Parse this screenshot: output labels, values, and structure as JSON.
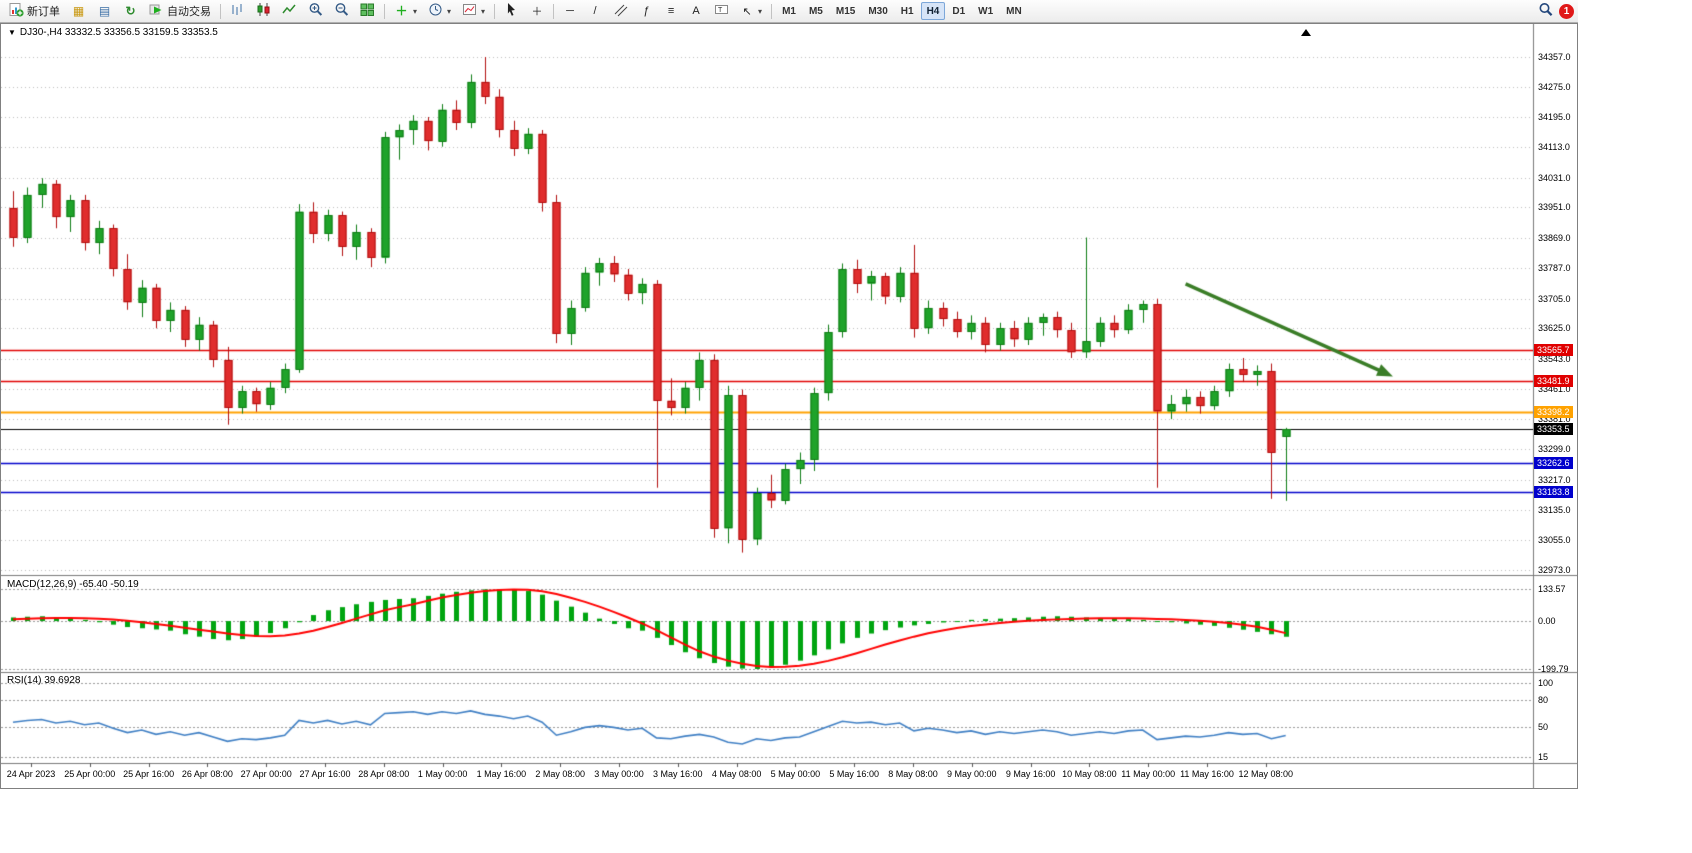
{
  "window": {
    "symbol_header": "DJ30-,H4 33332.5 33356.5 33159.5 33353.5"
  },
  "toolbar": {
    "new_order_label": "新订单",
    "auto_trading_label": "自动交易",
    "timeframes": [
      "M1",
      "M5",
      "M15",
      "M30",
      "H1",
      "H4",
      "D1",
      "W1",
      "MN"
    ],
    "active_timeframe": "H4",
    "notification_count": "1"
  },
  "chart_data": {
    "type": "candlestick",
    "symbol": "DJ30-",
    "timeframe": "H4",
    "ohlc": {
      "open": "33332.5",
      "high": "33356.5",
      "low": "33159.5",
      "close": "33353.5"
    },
    "y_ticks": [
      34357.0,
      34275.0,
      34195.0,
      34113.0,
      34031.0,
      33951.0,
      33869.0,
      33787.0,
      33705.0,
      33625.0,
      33543.0,
      33461.0,
      33381.0,
      33299.0,
      33217.0,
      33135.0,
      33055.0,
      32973.0
    ],
    "y_tick_labels": [
      "34357.0",
      "34275.0",
      "34195.0",
      "34113.0",
      "34031.0",
      "33951.0",
      "33869.0",
      "33787.0",
      "33705.0",
      "33625.0",
      "33543.0",
      "33461.0",
      "33381.0",
      "33299.0",
      "33217.0",
      "33135.0",
      "33055.0",
      "32973.0"
    ],
    "x_labels": [
      "24 Apr 2023",
      "25 Apr 00:00",
      "25 Apr 16:00",
      "26 Apr 08:00",
      "27 Apr 00:00",
      "27 Apr 16:00",
      "28 Apr 08:00",
      "1 May 00:00",
      "1 May 16:00",
      "2 May 08:00",
      "3 May 00:00",
      "3 May 16:00",
      "4 May 08:00",
      "5 May 00:00",
      "5 May 16:00",
      "8 May 08:00",
      "9 May 00:00",
      "9 May 16:00",
      "10 May 08:00",
      "11 May 00:00",
      "11 May 16:00",
      "12 May 08:00"
    ],
    "candles": [
      [
        33950,
        33995,
        33845,
        33870
      ],
      [
        33870,
        34005,
        33855,
        33985
      ],
      [
        33985,
        34030,
        33950,
        34015
      ],
      [
        34015,
        34025,
        33895,
        33925
      ],
      [
        33925,
        33985,
        33885,
        33970
      ],
      [
        33970,
        33985,
        33835,
        33855
      ],
      [
        33855,
        33915,
        33825,
        33895
      ],
      [
        33895,
        33905,
        33765,
        33785
      ],
      [
        33785,
        33825,
        33675,
        33695
      ],
      [
        33695,
        33755,
        33655,
        33735
      ],
      [
        33735,
        33745,
        33625,
        33645
      ],
      [
        33645,
        33695,
        33615,
        33675
      ],
      [
        33675,
        33685,
        33575,
        33595
      ],
      [
        33595,
        33655,
        33565,
        33635
      ],
      [
        33635,
        33645,
        33520,
        33540
      ],
      [
        33540,
        33575,
        33365,
        33410
      ],
      [
        33410,
        33470,
        33395,
        33455
      ],
      [
        33455,
        33465,
        33400,
        33420
      ],
      [
        33420,
        33480,
        33405,
        33465
      ],
      [
        33465,
        33530,
        33450,
        33515
      ],
      [
        33515,
        33960,
        33505,
        33940
      ],
      [
        33940,
        33965,
        33855,
        33880
      ],
      [
        33880,
        33945,
        33860,
        33930
      ],
      [
        33930,
        33940,
        33820,
        33845
      ],
      [
        33845,
        33905,
        33810,
        33885
      ],
      [
        33885,
        33895,
        33790,
        33815
      ],
      [
        33815,
        34155,
        33800,
        34140
      ],
      [
        34140,
        34175,
        34080,
        34160
      ],
      [
        34160,
        34200,
        34120,
        34185
      ],
      [
        34185,
        34195,
        34105,
        34130
      ],
      [
        34130,
        34230,
        34115,
        34215
      ],
      [
        34215,
        34240,
        34160,
        34180
      ],
      [
        34180,
        34310,
        34165,
        34290
      ],
      [
        34290,
        34357,
        34230,
        34250
      ],
      [
        34250,
        34270,
        34140,
        34160
      ],
      [
        34160,
        34185,
        34090,
        34110
      ],
      [
        34110,
        34165,
        34095,
        34150
      ],
      [
        34150,
        34160,
        33940,
        33965
      ],
      [
        33965,
        33985,
        33585,
        33610
      ],
      [
        33610,
        33700,
        33580,
        33680
      ],
      [
        33680,
        33790,
        33670,
        33775
      ],
      [
        33775,
        33815,
        33740,
        33800
      ],
      [
        33800,
        33820,
        33750,
        33770
      ],
      [
        33770,
        33785,
        33700,
        33720
      ],
      [
        33720,
        33760,
        33690,
        33745
      ],
      [
        33745,
        33755,
        33195,
        33430
      ],
      [
        33430,
        33490,
        33390,
        33410
      ],
      [
        33410,
        33480,
        33395,
        33465
      ],
      [
        33465,
        33560,
        33430,
        33540
      ],
      [
        33540,
        33555,
        33060,
        33085
      ],
      [
        33085,
        33470,
        33045,
        33445
      ],
      [
        33445,
        33460,
        33020,
        33055
      ],
      [
        33055,
        33195,
        33040,
        33180
      ],
      [
        33180,
        33230,
        33140,
        33160
      ],
      [
        33160,
        33260,
        33150,
        33245
      ],
      [
        33245,
        33290,
        33205,
        33270
      ],
      [
        33270,
        33465,
        33240,
        33450
      ],
      [
        33450,
        33635,
        33430,
        33615
      ],
      [
        33615,
        33800,
        33600,
        33785
      ],
      [
        33785,
        33810,
        33720,
        33745
      ],
      [
        33745,
        33780,
        33700,
        33765
      ],
      [
        33765,
        33775,
        33690,
        33710
      ],
      [
        33710,
        33790,
        33695,
        33775
      ],
      [
        33775,
        33850,
        33600,
        33625
      ],
      [
        33625,
        33700,
        33610,
        33680
      ],
      [
        33680,
        33695,
        33630,
        33650
      ],
      [
        33650,
        33670,
        33600,
        33615
      ],
      [
        33615,
        33660,
        33595,
        33640
      ],
      [
        33640,
        33655,
        33560,
        33580
      ],
      [
        33580,
        33640,
        33565,
        33625
      ],
      [
        33625,
        33645,
        33575,
        33595
      ],
      [
        33595,
        33655,
        33580,
        33640
      ],
      [
        33640,
        33665,
        33605,
        33655
      ],
      [
        33655,
        33670,
        33600,
        33620
      ],
      [
        33620,
        33640,
        33545,
        33560
      ],
      [
        33560,
        33870,
        33545,
        33590
      ],
      [
        33590,
        33655,
        33575,
        33640
      ],
      [
        33640,
        33660,
        33600,
        33620
      ],
      [
        33620,
        33690,
        33610,
        33675
      ],
      [
        33675,
        33700,
        33640,
        33690
      ],
      [
        33690,
        33705,
        33195,
        33400
      ],
      [
        33400,
        33445,
        33380,
        33420
      ],
      [
        33420,
        33460,
        33400,
        33440
      ],
      [
        33440,
        33455,
        33395,
        33415
      ],
      [
        33415,
        33470,
        33405,
        33455
      ],
      [
        33455,
        33530,
        33440,
        33515
      ],
      [
        33515,
        33545,
        33480,
        33500
      ],
      [
        33500,
        33525,
        33470,
        33510
      ],
      [
        33510,
        33530,
        33165,
        33290
      ],
      [
        33332.5,
        33356.5,
        33159.5,
        33353.5
      ]
    ],
    "hlines": [
      {
        "price": 33565.7,
        "label": "33565.7",
        "color": "#E00000",
        "width": 1.4
      },
      {
        "price": 33481.9,
        "label": "33481.9",
        "color": "#E00000",
        "width": 1.4
      },
      {
        "price": 33398.2,
        "label": "33398.2",
        "color": "#FFA200",
        "width": 2
      },
      {
        "price": 33353.5,
        "label": "33353.5",
        "color": "#000000",
        "width": 1
      },
      {
        "price": 33262.6,
        "label": "33262.6",
        "color": "#0000CC",
        "width": 1.4
      },
      {
        "price": 33183.8,
        "label": "33183.8",
        "color": "#0000CC",
        "width": 1.4
      }
    ],
    "arrow": {
      "from_index": 82,
      "from_price": 33745,
      "to_index": 96.5,
      "to_price": 33495,
      "color": "#3A7D27"
    },
    "macd": {
      "label": "MACD(12,26,9) -65.40 -50.19",
      "value_main": -65.4,
      "value_signal": -50.19,
      "scale_values": [
        133.57,
        0.0,
        -199.79
      ],
      "scale_labels": [
        "133.57",
        "0.00",
        "-199.79"
      ],
      "hist_color": "#00A510",
      "signal_color": "#FF0000",
      "histogram": [
        15,
        18,
        20,
        15,
        10,
        5,
        -5,
        -15,
        -25,
        -30,
        -35,
        -40,
        -55,
        -65,
        -75,
        -80,
        -75,
        -65,
        -50,
        -30,
        -5,
        25,
        45,
        58,
        70,
        80,
        88,
        92,
        95,
        105,
        114,
        122,
        128,
        132,
        133.5,
        131,
        125,
        110,
        85,
        60,
        35,
        10,
        -12,
        -30,
        -40,
        -70,
        -100,
        -130,
        -155,
        -175,
        -190,
        -198,
        -199.8,
        -193,
        -182,
        -165,
        -143,
        -118,
        -93,
        -70,
        -52,
        -38,
        -27,
        -18,
        -12,
        -6,
        0,
        5,
        8,
        10,
        12,
        15,
        18,
        20,
        18,
        15,
        12,
        10,
        8,
        5,
        0,
        -5,
        -10,
        -15,
        -20,
        -28,
        -36,
        -45,
        -55,
        -65.4
      ],
      "signal": [
        8,
        10,
        12,
        13,
        13,
        12,
        10,
        6,
        1,
        -5,
        -12,
        -20,
        -28,
        -36,
        -44,
        -52,
        -58,
        -62,
        -63,
        -60,
        -52,
        -40,
        -25,
        -8,
        10,
        28,
        45,
        58,
        70,
        85,
        98,
        109,
        118,
        125,
        129,
        131,
        130,
        124,
        113,
        97,
        80,
        60,
        38,
        15,
        -10,
        -38,
        -68,
        -98,
        -126,
        -148,
        -165,
        -178,
        -187,
        -191,
        -190,
        -186,
        -178,
        -166,
        -151,
        -134,
        -116,
        -98,
        -81,
        -65,
        -51,
        -39,
        -29,
        -21,
        -14,
        -8,
        -3,
        1,
        4,
        7,
        9,
        11,
        12,
        12,
        12,
        11,
        9,
        7,
        4,
        1,
        -3,
        -8,
        -15,
        -24,
        -36,
        -50.2
      ]
    },
    "rsi": {
      "label": "RSI(14) 39.6928",
      "value": 39.6928,
      "scale_values": [
        100,
        80,
        50,
        15
      ],
      "scale_labels": [
        "100",
        "80",
        "50",
        "15"
      ],
      "line_color": "#3F7FC4",
      "values": [
        55,
        57,
        58,
        54,
        56,
        52,
        54,
        48,
        43,
        46,
        41,
        44,
        40,
        43,
        38,
        33,
        36,
        35,
        37,
        40,
        57,
        54,
        57,
        53,
        56,
        52,
        65,
        66,
        67,
        64,
        67,
        65,
        68,
        64,
        62,
        59,
        62,
        55,
        40,
        44,
        49,
        51,
        49,
        46,
        48,
        37,
        36,
        39,
        41,
        38,
        32,
        30,
        36,
        34,
        37,
        38,
        44,
        50,
        56,
        54,
        55,
        52,
        54,
        45,
        48,
        46,
        43,
        45,
        41,
        44,
        42,
        44,
        46,
        44,
        40,
        42,
        44,
        42,
        45,
        46,
        35,
        37,
        39,
        38,
        40,
        43,
        41,
        42,
        36,
        39.69
      ]
    },
    "colors": {
      "up": "#1FA32A",
      "up_border": "#0E7D14",
      "down": "#E02D2D",
      "down_border": "#B20F0F",
      "grid": "#bcbcbc",
      "separator": "#787878",
      "level_dash": "#9a9a9a"
    }
  }
}
